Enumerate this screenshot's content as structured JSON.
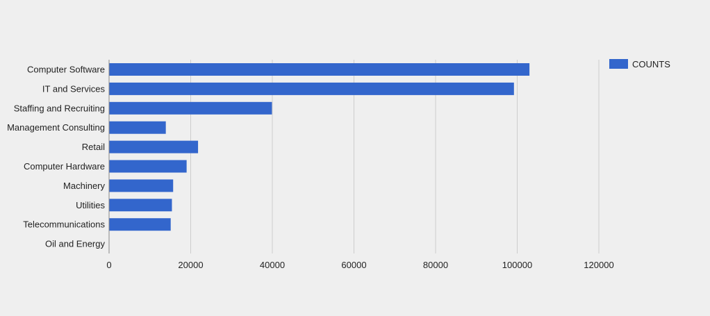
{
  "chart_data": {
    "type": "bar",
    "orientation": "horizontal",
    "categories": [
      "Computer Software",
      "IT and Services",
      "Staffing and Recruiting",
      "Management Consulting",
      "Retail",
      "Computer Hardware",
      "Machinery",
      "Utilities",
      "Telecommunications",
      "Oil and Energy"
    ],
    "series": [
      {
        "name": "COUNTS",
        "values": [
          103000,
          99200,
          39900,
          13900,
          21800,
          19000,
          15700,
          15400,
          15100,
          0
        ]
      }
    ],
    "xlim": [
      0,
      120000
    ],
    "xticks": [
      0,
      20000,
      40000,
      60000,
      80000,
      100000,
      120000
    ],
    "xtick_labels": [
      "0",
      "20000",
      "40000",
      "60000",
      "80000",
      "100000",
      "120000"
    ],
    "grid": true,
    "legend_position": "top-right",
    "colors": {
      "bar": "#3366cc",
      "grid": "#cccccc",
      "axis": "#888888",
      "background": "#efefef"
    }
  }
}
